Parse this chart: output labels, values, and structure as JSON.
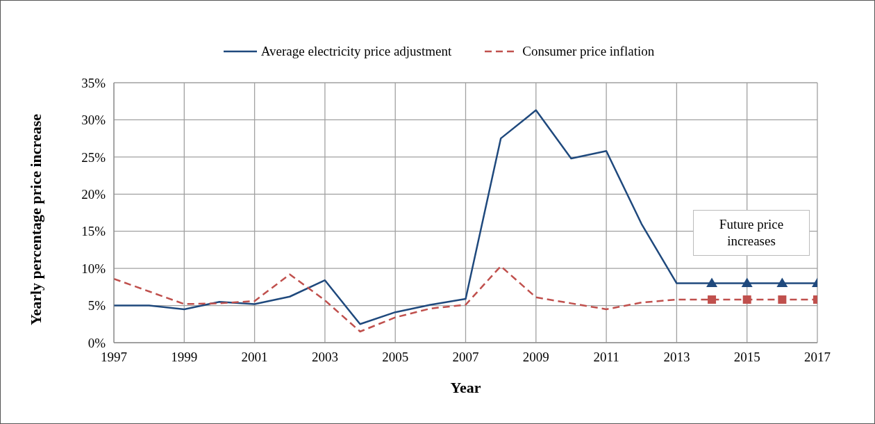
{
  "chart_data": {
    "type": "line",
    "xlabel": "Year",
    "ylabel": "Yearly percentage price increase",
    "x": [
      1997,
      1998,
      1999,
      2000,
      2001,
      2002,
      2003,
      2004,
      2005,
      2006,
      2007,
      2008,
      2009,
      2010,
      2011,
      2012,
      2013,
      2014,
      2015,
      2016,
      2017
    ],
    "series": [
      {
        "name": "Average electricity price adjustment",
        "color": "#1f497d",
        "line_style": "solid",
        "marker": "none",
        "values": [
          5.0,
          5.0,
          4.5,
          5.5,
          5.2,
          6.2,
          8.4,
          2.5,
          4.1,
          5.1,
          5.9,
          27.5,
          31.3,
          24.8,
          25.8,
          16.0,
          8.0,
          8.0,
          8.0,
          8.0,
          8.0
        ]
      },
      {
        "name": "Consumer price inflation",
        "color": "#c0504d",
        "line_style": "dashed",
        "marker": "none",
        "values": [
          8.6,
          6.9,
          5.2,
          5.3,
          5.6,
          9.2,
          5.7,
          1.5,
          3.4,
          4.6,
          5.1,
          10.3,
          6.1,
          5.3,
          4.5,
          5.4,
          5.8,
          5.8,
          5.8,
          5.8,
          5.8
        ]
      },
      {
        "type": "scatter",
        "color": "#1f497d",
        "marker": "triangle",
        "x": [
          2014,
          2015,
          2016,
          2017
        ],
        "values": [
          8.0,
          8.0,
          8.0,
          8.0
        ]
      },
      {
        "type": "scatter",
        "color": "#c0504d",
        "marker": "square",
        "x": [
          2014,
          2015,
          2016,
          2017
        ],
        "values": [
          5.8,
          5.8,
          5.8,
          5.8
        ]
      }
    ],
    "xlim": [
      1997,
      2017
    ],
    "xticks": [
      1997,
      1999,
      2001,
      2003,
      2005,
      2007,
      2009,
      2011,
      2013,
      2015,
      2017
    ],
    "ylim": [
      0,
      35
    ],
    "yticks": [
      {
        "value": 0,
        "label": "0%"
      },
      {
        "value": 5,
        "label": "5%"
      },
      {
        "value": 10,
        "label": "10%"
      },
      {
        "value": 15,
        "label": "15%"
      },
      {
        "value": 20,
        "label": "20%"
      },
      {
        "value": 25,
        "label": "25%"
      },
      {
        "value": 30,
        "label": "30%"
      },
      {
        "value": 35,
        "label": "35%"
      }
    ],
    "grid": true,
    "legend": "top",
    "annotations": [
      "Future price increases"
    ]
  }
}
